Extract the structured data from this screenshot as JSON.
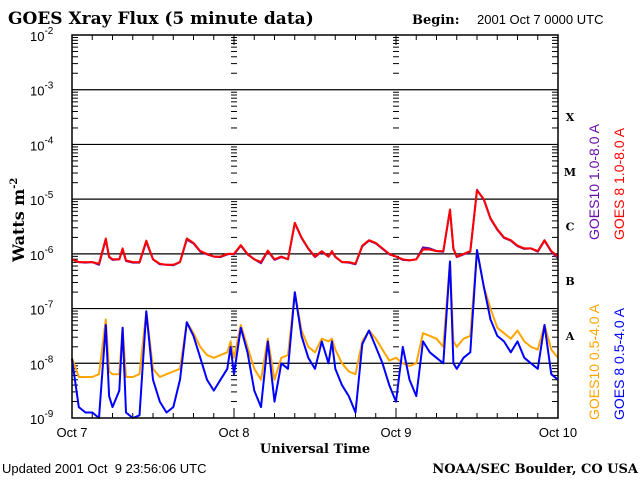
{
  "chart_data": {
    "type": "line",
    "title": "GOES Xray Flux (5 minute data)",
    "begin_label": "Begin:",
    "begin_value": "2001 Oct 7 0000 UTC",
    "xlabel": "Universal Time",
    "ylabel": "Watts m",
    "ylabel_sup": "-2",
    "x_unit": "hours since 2001 Oct 7 0000 UTC",
    "xlim": [
      0,
      72
    ],
    "x_ticks": [
      {
        "value": 0,
        "label": "Oct 7"
      },
      {
        "value": 24,
        "label": "Oct 8"
      },
      {
        "value": 48,
        "label": "Oct 9"
      },
      {
        "value": 72,
        "label": "Oct 10"
      }
    ],
    "y_scale": "log",
    "ylim_log10": [
      -9,
      -2
    ],
    "y_ticks": [
      {
        "base": "10",
        "exp": "-2"
      },
      {
        "base": "10",
        "exp": "-3"
      },
      {
        "base": "10",
        "exp": "-4"
      },
      {
        "base": "10",
        "exp": "-5"
      },
      {
        "base": "10",
        "exp": "-6"
      },
      {
        "base": "10",
        "exp": "-7"
      },
      {
        "base": "10",
        "exp": "-8"
      },
      {
        "base": "10",
        "exp": "-9"
      }
    ],
    "flare_classes": [
      {
        "label": "X",
        "log10": -3.5
      },
      {
        "label": "M",
        "log10": -4.5
      },
      {
        "label": "C",
        "log10": -5.5
      },
      {
        "label": "B",
        "log10": -6.5
      },
      {
        "label": "A",
        "log10": -7.5
      }
    ],
    "grid": "horizontal lines at each decade",
    "x": [
      0,
      1,
      2,
      3,
      4,
      5,
      5.5,
      6,
      7,
      7.5,
      8,
      9,
      10,
      11,
      12,
      13,
      14,
      15,
      16,
      17,
      18,
      19,
      20,
      21,
      22,
      23,
      23.5,
      24,
      25,
      26,
      27,
      28,
      29,
      30,
      31,
      32,
      33,
      34,
      35,
      36,
      37,
      38,
      38.5,
      39,
      40,
      41,
      42,
      43,
      44,
      45,
      46,
      47,
      48,
      49,
      50,
      51,
      52,
      53,
      54,
      55,
      56,
      56.5,
      57,
      58,
      59,
      60,
      61,
      62,
      63,
      64,
      65,
      66,
      67,
      68,
      69,
      70,
      71,
      72
    ],
    "series": [
      {
        "name": "GOES10 0.5-4.0 A",
        "color": "#ffa500",
        "values_log10": [
          -7.9,
          -8.25,
          -8.25,
          -8.25,
          -8.2,
          -7.2,
          -8.15,
          -8.2,
          -8.2,
          -7.35,
          -8.25,
          -8.25,
          -8.2,
          -7.05,
          -8.1,
          -8.25,
          -8.2,
          -8.15,
          -8.1,
          -7.25,
          -7.45,
          -7.7,
          -7.85,
          -7.9,
          -7.85,
          -7.8,
          -7.6,
          -7.9,
          -7.3,
          -7.7,
          -8.1,
          -8.3,
          -7.55,
          -8.3,
          -7.9,
          -7.85,
          -6.7,
          -7.4,
          -7.7,
          -7.8,
          -7.55,
          -7.6,
          -7.55,
          -7.75,
          -8.0,
          -8.15,
          -8.2,
          -7.6,
          -7.4,
          -7.55,
          -7.75,
          -7.95,
          -7.9,
          -8.0,
          -8.05,
          -8.0,
          -7.45,
          -7.5,
          -7.55,
          -7.7,
          -6.14,
          -7.6,
          -7.7,
          -7.55,
          -7.5,
          -5.93,
          -6.6,
          -7.0,
          -7.35,
          -7.45,
          -7.55,
          -7.4,
          -7.6,
          -7.7,
          -7.75,
          -7.3,
          -7.75,
          -7.9
        ]
      },
      {
        "name": "GOES 8 0.5-4.0 A",
        "color": "#0000ff",
        "values_log10": [
          -7.92,
          -8.8,
          -8.9,
          -8.9,
          -9.0,
          -7.3,
          -8.6,
          -8.8,
          -8.5,
          -7.35,
          -8.9,
          -9.0,
          -8.95,
          -7.05,
          -8.3,
          -8.7,
          -8.9,
          -8.8,
          -8.3,
          -7.25,
          -7.5,
          -7.9,
          -8.3,
          -8.5,
          -8.3,
          -8.1,
          -7.7,
          -8.2,
          -7.35,
          -7.8,
          -8.5,
          -8.8,
          -7.6,
          -8.7,
          -8.0,
          -8.1,
          -6.7,
          -7.5,
          -7.9,
          -8.1,
          -7.6,
          -8.0,
          -7.6,
          -8.1,
          -8.4,
          -8.6,
          -8.9,
          -7.65,
          -7.4,
          -7.7,
          -8.0,
          -8.4,
          -8.7,
          -7.7,
          -8.3,
          -8.6,
          -7.6,
          -7.8,
          -7.9,
          -8.0,
          -6.14,
          -8.0,
          -8.1,
          -7.9,
          -7.8,
          -5.93,
          -6.6,
          -7.2,
          -7.5,
          -7.6,
          -7.8,
          -7.6,
          -7.9,
          -8.0,
          -8.1,
          -7.3,
          -8.2,
          -8.3
        ]
      },
      {
        "name": "GOES10 1.0-8.0 A",
        "color": "#6a0dad",
        "values_log10": [
          -6.1,
          -6.15,
          -6.16,
          -6.15,
          -6.2,
          -5.74,
          -6.06,
          -6.11,
          -6.1,
          -5.92,
          -6.13,
          -6.16,
          -6.16,
          -5.78,
          -6.1,
          -6.19,
          -6.2,
          -6.21,
          -6.15,
          -5.74,
          -5.81,
          -5.96,
          -6.01,
          -6.05,
          -6.06,
          -6.01,
          -6.0,
          -6.01,
          -5.85,
          -6.01,
          -6.1,
          -6.17,
          -5.95,
          -6.11,
          -6.06,
          -6.1,
          -5.44,
          -5.71,
          -5.91,
          -6.06,
          -5.96,
          -6.05,
          -5.96,
          -6.06,
          -6.15,
          -6.16,
          -6.19,
          -5.86,
          -5.76,
          -5.81,
          -5.91,
          -6.01,
          -6.05,
          -6.11,
          -6.12,
          -6.1,
          -5.88,
          -5.9,
          -5.95,
          -5.96,
          -5.2,
          -5.91,
          -6.06,
          -6.01,
          -5.96,
          -4.83,
          -5.01,
          -5.36,
          -5.56,
          -5.71,
          -5.76,
          -5.86,
          -5.91,
          -5.9,
          -5.96,
          -5.76,
          -5.96,
          -6.08
        ]
      },
      {
        "name": "GOES 8 1.0-8.0 A",
        "color": "#ff0000",
        "values_log10": [
          -6.1,
          -6.15,
          -6.15,
          -6.15,
          -6.18,
          -5.72,
          -6.05,
          -6.1,
          -6.1,
          -5.9,
          -6.12,
          -6.15,
          -6.15,
          -5.76,
          -6.1,
          -6.18,
          -6.2,
          -6.2,
          -6.15,
          -5.72,
          -5.8,
          -5.95,
          -6.0,
          -6.05,
          -6.05,
          -6.0,
          -6.0,
          -6.0,
          -5.84,
          -6.0,
          -6.1,
          -6.15,
          -5.94,
          -6.1,
          -6.05,
          -6.1,
          -5.43,
          -5.7,
          -5.9,
          -6.05,
          -5.95,
          -6.05,
          -5.95,
          -6.05,
          -6.15,
          -6.15,
          -6.18,
          -5.85,
          -5.75,
          -5.8,
          -5.9,
          -6.0,
          -6.05,
          -6.1,
          -6.12,
          -6.1,
          -5.92,
          -5.92,
          -5.95,
          -5.95,
          -5.19,
          -5.9,
          -6.05,
          -6.0,
          -5.95,
          -4.84,
          -5.0,
          -5.35,
          -5.55,
          -5.7,
          -5.75,
          -5.85,
          -5.9,
          -5.9,
          -5.95,
          -5.75,
          -5.95,
          -6.05
        ]
      }
    ],
    "legend_placement": "right, rotated"
  },
  "footer": {
    "updated": "Updated 2001 Oct  9 23:56:06 UTC",
    "credit": "NOAA/SEC Boulder, CO USA"
  }
}
